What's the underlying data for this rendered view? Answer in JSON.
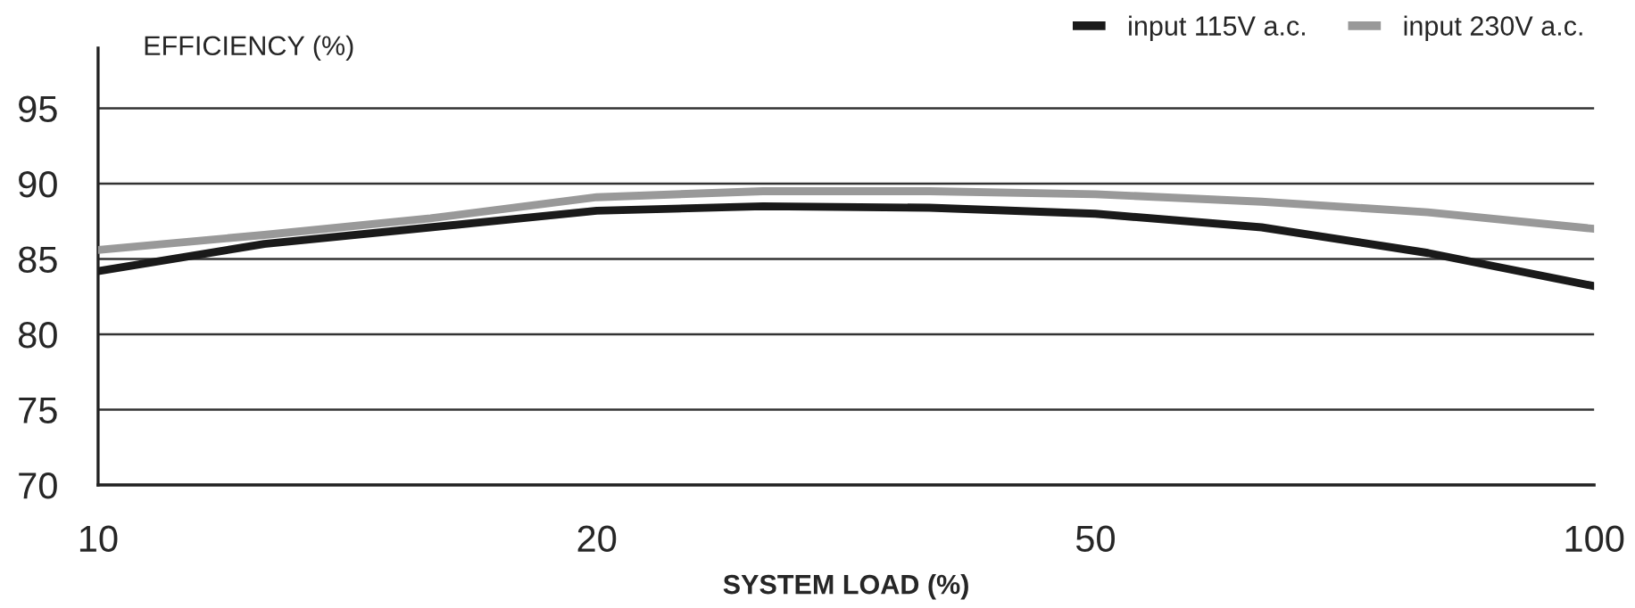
{
  "chart_data": {
    "type": "line",
    "ylabel": "EFFICIENCY (%)",
    "xlabel": "SYSTEM LOAD (%)",
    "categories": [
      "10",
      null,
      null,
      "20",
      null,
      null,
      "50",
      null,
      null,
      "100"
    ],
    "series": [
      {
        "name": "input 115V a.c.",
        "color": "#1a1a1a",
        "values": [
          84.2,
          86.0,
          87.1,
          88.2,
          88.5,
          88.4,
          88.0,
          87.1,
          85.4,
          83.2
        ]
      },
      {
        "name": "input 230V a.c.",
        "color": "#999999",
        "values": [
          85.6,
          86.6,
          87.7,
          89.1,
          89.5,
          89.5,
          89.3,
          88.8,
          88.1,
          87.0
        ]
      }
    ],
    "ylim": [
      70,
      99
    ],
    "yticks": [
      70,
      75,
      80,
      85,
      90,
      95
    ],
    "grid": "y",
    "legend": "top right",
    "marker": "none",
    "line_style": "solid"
  }
}
